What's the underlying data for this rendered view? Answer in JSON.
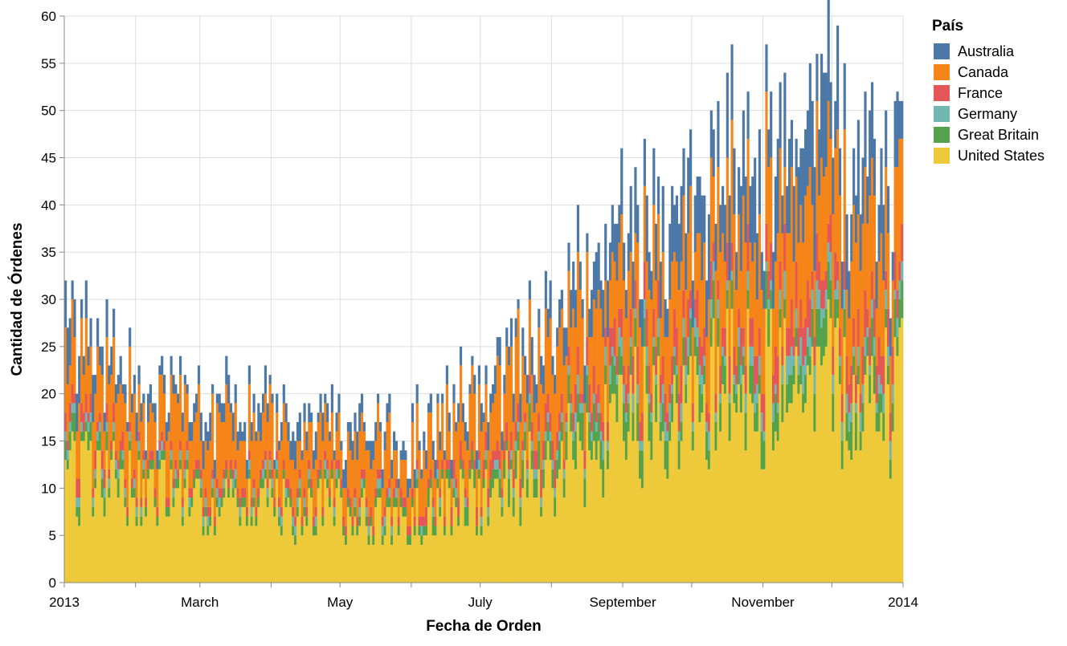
{
  "chart_data": {
    "type": "bar",
    "stacked": true,
    "title": "",
    "xlabel": "Fecha de Orden",
    "ylabel": "Cantidad de Órdenes",
    "ylim": [
      0,
      60
    ],
    "xlim": [
      "2013-01-01",
      "2014-01-01"
    ],
    "y_ticks": [
      0,
      5,
      10,
      15,
      20,
      25,
      30,
      35,
      40,
      45,
      50,
      55,
      60
    ],
    "x_ticks": [
      {
        "date": "2013-01-01",
        "label": "2013"
      },
      {
        "date": "2013-02-01",
        "label": ""
      },
      {
        "date": "2013-03-01",
        "label": "March"
      },
      {
        "date": "2013-04-01",
        "label": ""
      },
      {
        "date": "2013-05-01",
        "label": "May"
      },
      {
        "date": "2013-06-01",
        "label": ""
      },
      {
        "date": "2013-07-01",
        "label": "July"
      },
      {
        "date": "2013-08-01",
        "label": ""
      },
      {
        "date": "2013-09-01",
        "label": "September"
      },
      {
        "date": "2013-10-01",
        "label": ""
      },
      {
        "date": "2013-11-01",
        "label": "November"
      },
      {
        "date": "2013-12-01",
        "label": ""
      },
      {
        "date": "2014-01-01",
        "label": "2014"
      }
    ],
    "grid": true,
    "legend": {
      "title": "País",
      "position": "right",
      "items": [
        {
          "name": "Australia",
          "color": "#4c78a8"
        },
        {
          "name": "Canada",
          "color": "#f58518"
        },
        {
          "name": "France",
          "color": "#e45756"
        },
        {
          "name": "Germany",
          "color": "#72b7b2"
        },
        {
          "name": "Great Britain",
          "color": "#54a24b"
        },
        {
          "name": "United States",
          "color": "#eeca3b"
        }
      ]
    },
    "stack_order": [
      "United States",
      "Great Britain",
      "Germany",
      "France",
      "Canada",
      "Australia"
    ],
    "series_anchors": [
      {
        "date": "2013-01-01",
        "United States": 12,
        "Great Britain": 2,
        "Germany": 1,
        "France": 2,
        "Canada": 7,
        "Australia": 4
      },
      {
        "date": "2013-02-01",
        "United States": 10,
        "Great Britain": 1,
        "Germany": 0.5,
        "France": 1,
        "Canada": 6,
        "Australia": 2
      },
      {
        "date": "2013-03-01",
        "United States": 8,
        "Great Britain": 1,
        "Germany": 0.5,
        "France": 1,
        "Canada": 6,
        "Australia": 2
      },
      {
        "date": "2013-04-01",
        "United States": 8,
        "Great Britain": 1,
        "Germany": 0.5,
        "France": 1,
        "Canada": 5,
        "Australia": 2
      },
      {
        "date": "2013-05-01",
        "United States": 8,
        "Great Britain": 1,
        "Germany": 0.5,
        "France": 1,
        "Canada": 5,
        "Australia": 2
      },
      {
        "date": "2013-06-01",
        "United States": 7,
        "Great Britain": 1,
        "Germany": 0.5,
        "France": 1,
        "Canada": 5,
        "Australia": 1.5
      },
      {
        "date": "2013-07-01",
        "United States": 9,
        "Great Britain": 1.5,
        "Germany": 0.5,
        "France": 1.5,
        "Canada": 6,
        "Australia": 2
      },
      {
        "date": "2013-08-01",
        "United States": 12,
        "Great Britain": 2.5,
        "Germany": 1,
        "France": 2,
        "Canada": 8,
        "Australia": 3
      },
      {
        "date": "2013-09-01",
        "United States": 17,
        "Great Britain": 3,
        "Germany": 1.5,
        "France": 3,
        "Canada": 8,
        "Australia": 5
      },
      {
        "date": "2013-10-01",
        "United States": 20,
        "Great Britain": 3,
        "Germany": 1.5,
        "France": 3,
        "Canada": 9,
        "Australia": 6
      },
      {
        "date": "2013-11-01",
        "United States": 21,
        "Great Britain": 3,
        "Germany": 2,
        "France": 3.5,
        "Canada": 10,
        "Australia": 7
      },
      {
        "date": "2013-12-01",
        "United States": 21,
        "Great Britain": 3,
        "Germany": 2,
        "France": 3.5,
        "Canada": 10,
        "Australia": 8
      },
      {
        "date": "2014-01-01",
        "United States": 19,
        "Great Britain": 3,
        "Germany": 1.5,
        "France": 3,
        "Canada": 10,
        "Australia": 6
      }
    ]
  }
}
